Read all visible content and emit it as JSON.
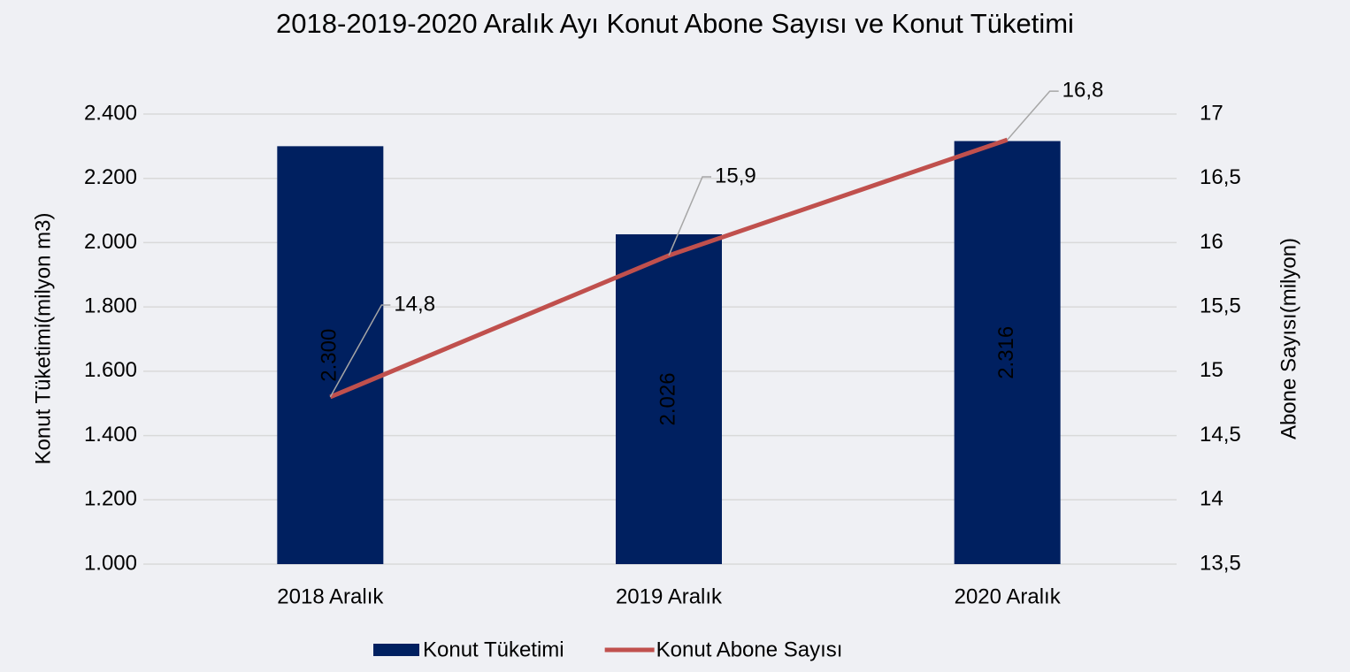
{
  "chart_data": {
    "type": "bar_line",
    "title": "2018-2019-2020 Aralık Ayı Konut Abone Sayısı ve Konut Tüketimi",
    "y_label": "Konut Tüketimi(milyon m3)",
    "y2_label": "Abone Sayısı(milyon)",
    "categories": [
      "2018 Aralık",
      "2019 Aralık",
      "2020 Aralık"
    ],
    "series": [
      {
        "name": "Konut Tüketimi",
        "type": "bar",
        "color": "#002060",
        "values": [
          2300,
          2026,
          2316
        ],
        "value_labels": [
          "2.300",
          "2.026",
          "2.316"
        ]
      },
      {
        "name": "Konut Abone Sayısı",
        "type": "line",
        "axis": "y2",
        "color": "#c0504d",
        "values": [
          14.8,
          15.9,
          16.8
        ],
        "value_labels": [
          "14,8",
          "15,9",
          "16,8"
        ]
      }
    ],
    "ylim": [
      1000,
      2400
    ],
    "yticks": [
      {
        "value": 1000,
        "label": "1.000"
      },
      {
        "value": 1200,
        "label": "1.200"
      },
      {
        "value": 1400,
        "label": "1.400"
      },
      {
        "value": 1600,
        "label": "1.600"
      },
      {
        "value": 1800,
        "label": "1.800"
      },
      {
        "value": 2000,
        "label": "2.000"
      },
      {
        "value": 2200,
        "label": "2.200"
      },
      {
        "value": 2400,
        "label": "2.400"
      }
    ],
    "y2lim": [
      13.5,
      17
    ],
    "y2ticks": [
      {
        "value": 13.5,
        "label": "13,5"
      },
      14,
      {
        "value": 14.5,
        "label": "14,5"
      },
      15,
      {
        "value": 15.5,
        "label": "15,5"
      },
      16,
      {
        "value": 16.5,
        "label": "16,5"
      },
      17
    ],
    "grid": true,
    "legend": "bottom"
  }
}
